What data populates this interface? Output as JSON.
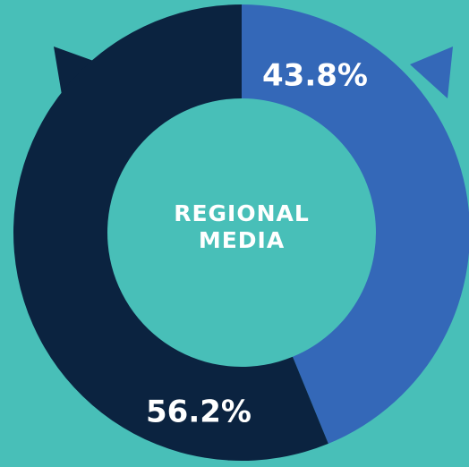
{
  "chart_data": {
    "type": "donut",
    "categories": [
      null,
      null
    ],
    "values": [
      43.8,
      56.2
    ],
    "value_labels": [
      "43.8%",
      "56.2%"
    ],
    "colors": [
      "#3468b8",
      "#0b2340"
    ],
    "center_label": [
      "REGIONAL",
      "MEDIA"
    ]
  }
}
